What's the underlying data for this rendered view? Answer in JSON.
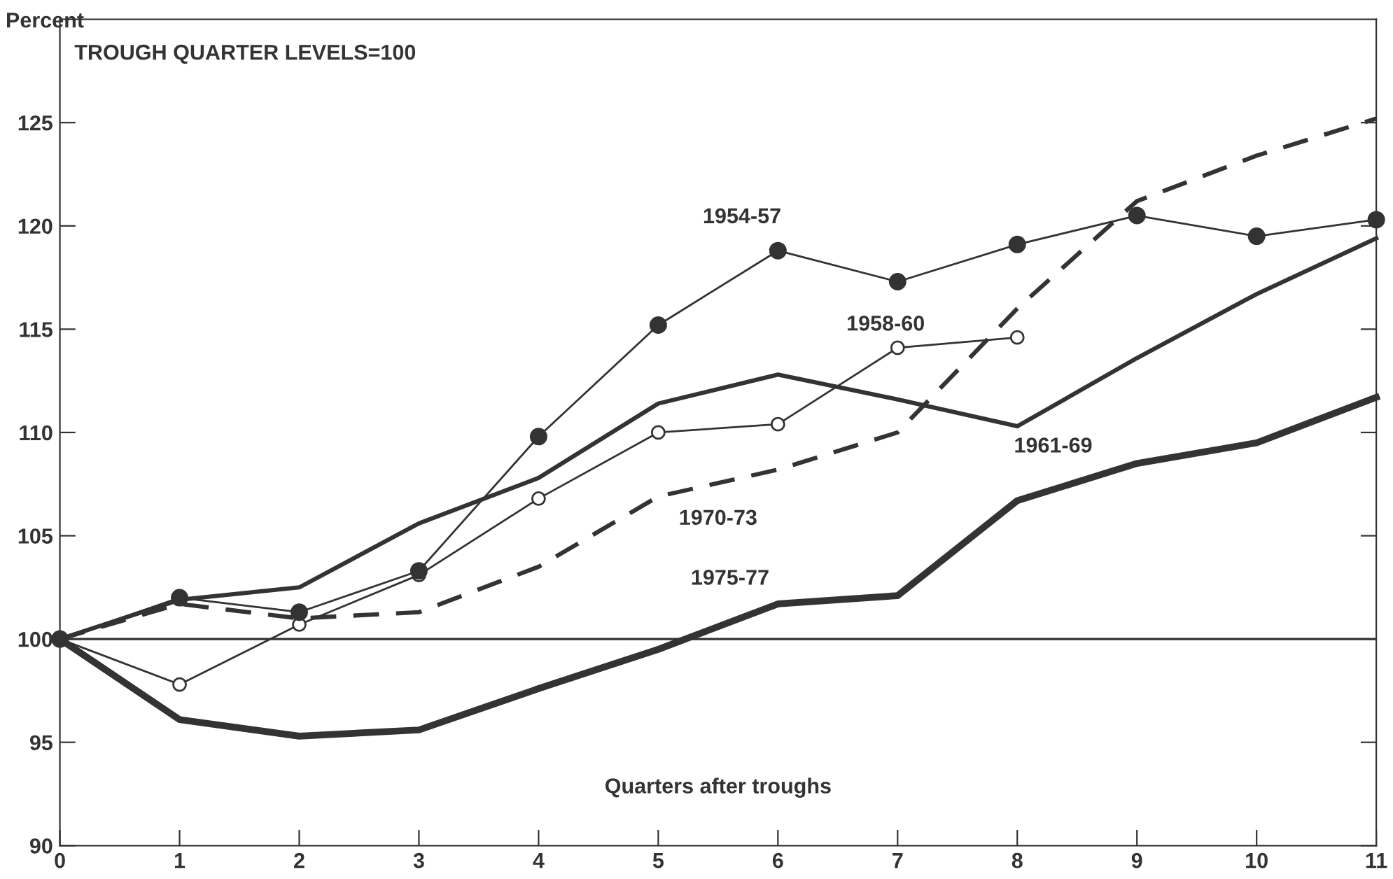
{
  "chart_data": {
    "type": "line",
    "ylabel": "Percent",
    "xlabel": "Quarters after troughs",
    "annotations": [
      "TROUGH QUARTER LEVELS=100"
    ],
    "x": [
      0,
      1,
      2,
      3,
      4,
      5,
      6,
      7,
      8,
      9,
      10,
      11
    ],
    "series": [
      {
        "name": "1954-57",
        "color": "#333333",
        "marker": "circle",
        "line_style": "solid",
        "values": [
          100,
          102.0,
          101.3,
          103.3,
          109.8,
          115.2,
          118.8,
          117.3,
          119.1,
          120.5,
          119.5,
          120.3
        ]
      },
      {
        "name": "1958-60",
        "color": "#333333",
        "marker": "circle",
        "line_style": "solid",
        "values": [
          100,
          97.8,
          100.7,
          103.1,
          106.8,
          110.0,
          110.4,
          114.1,
          114.6,
          null,
          null,
          null
        ]
      },
      {
        "name": "1961-69",
        "color": "#333333",
        "marker": "none",
        "line_style": "solid",
        "values": [
          100,
          101.9,
          102.5,
          105.6,
          107.8,
          111.4,
          112.8,
          111.6,
          110.3,
          113.6,
          116.7,
          119.4
        ]
      },
      {
        "name": "1970-73",
        "color": "#333333",
        "marker": "none",
        "line_style": "dashed",
        "values": [
          100,
          101.7,
          101.0,
          101.3,
          103.5,
          106.9,
          108.2,
          110.0,
          116.0,
          121.2,
          123.4,
          125.2
        ]
      },
      {
        "name": "1975-77",
        "color": "#333333",
        "marker": "none",
        "line_style": "solid",
        "values": [
          100,
          96.1,
          95.3,
          95.6,
          97.6,
          99.5,
          101.7,
          102.1,
          106.7,
          108.5,
          109.5,
          111.7
        ]
      }
    ],
    "ref_lines": [
      {
        "axis": "y",
        "value": 100,
        "color": "#333333"
      }
    ],
    "xlim": [
      0,
      11
    ],
    "ylim": [
      90,
      130
    ],
    "xticks": [
      0,
      1,
      2,
      3,
      4,
      5,
      6,
      7,
      8,
      9,
      10,
      11
    ],
    "yticks": [
      90,
      95,
      100,
      105,
      110,
      115,
      120,
      125
    ],
    "grid": false,
    "legend": false
  }
}
